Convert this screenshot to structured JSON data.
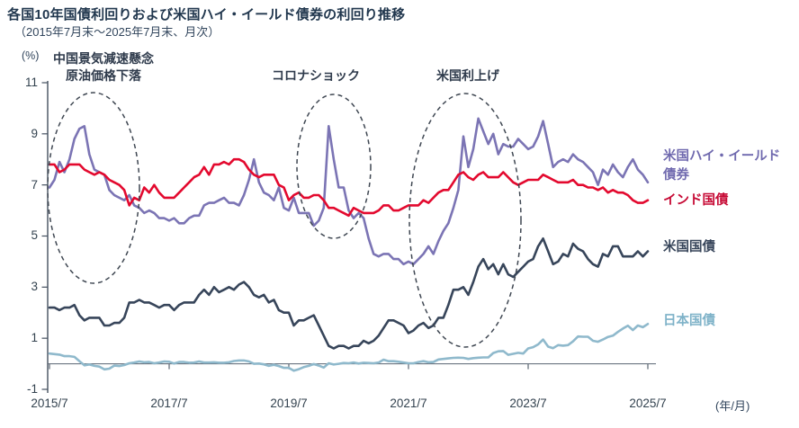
{
  "header": {
    "title": "各国10年国債利回りおよび米国ハイ・イールド債券の利回り推移",
    "subtitle": "（2015年7月末～2025年7月末、月次）"
  },
  "chart_data": {
    "type": "line",
    "title": "各国10年国債利回りおよび米国ハイ・イールド債券の利回り推移",
    "subtitle": "（2015年7月末～2025年7月末、月次）",
    "x_start": "2015/7",
    "x_end": "2025/7",
    "frequency": "monthly",
    "months": 121,
    "ylim": [
      -1,
      11
    ],
    "y_ticks": [
      -1,
      1,
      3,
      5,
      7,
      9,
      11
    ],
    "x_ticks": [
      {
        "month": 0,
        "label": "2015/7"
      },
      {
        "month": 24,
        "label": "2017/7"
      },
      {
        "month": 48,
        "label": "2019/7"
      },
      {
        "month": 72,
        "label": "2021/7"
      },
      {
        "month": 96,
        "label": "2023/7"
      },
      {
        "month": 120,
        "label": "2025/7"
      }
    ],
    "y_unit": "(%)",
    "x_unit": "(年/月)",
    "grid": false,
    "legend_position": "right",
    "annotations": [
      {
        "text": "中国景気減速懸念\n原油価格下落"
      },
      {
        "text": "コロナショック"
      },
      {
        "text": "米国利上げ"
      }
    ],
    "series": [
      {
        "name": "米国ハイ・イールド債券",
        "color": "#7B74B4",
        "label_color": "#6F69AE",
        "values": [
          6.9,
          7.2,
          7.9,
          7.5,
          8.0,
          8.8,
          9.2,
          9.3,
          8.2,
          7.6,
          7.5,
          7.4,
          6.8,
          6.6,
          6.5,
          6.4,
          6.6,
          6.2,
          6.1,
          5.9,
          6.0,
          5.9,
          5.7,
          5.7,
          5.6,
          5.7,
          5.5,
          5.5,
          5.7,
          5.8,
          5.8,
          6.2,
          6.3,
          6.3,
          6.4,
          6.5,
          6.3,
          6.3,
          6.2,
          6.6,
          7.2,
          8.0,
          7.1,
          6.7,
          6.6,
          6.4,
          6.9,
          6.1,
          6.0,
          6.5,
          5.9,
          5.9,
          5.9,
          5.4,
          5.6,
          6.1,
          9.3,
          8.0,
          6.9,
          6.9,
          6.0,
          5.7,
          5.9,
          5.7,
          4.9,
          4.3,
          4.2,
          4.3,
          4.3,
          4.1,
          4.1,
          3.9,
          4.0,
          3.9,
          4.1,
          4.3,
          4.6,
          4.3,
          4.8,
          5.2,
          5.5,
          6.1,
          6.8,
          8.9,
          7.7,
          8.4,
          9.6,
          9.1,
          8.6,
          9.0,
          8.2,
          8.6,
          8.5,
          8.5,
          8.8,
          8.6,
          8.4,
          8.5,
          8.9,
          9.5,
          8.6,
          7.7,
          7.9,
          8.0,
          7.9,
          8.2,
          8.0,
          7.9,
          7.7,
          7.5,
          7.0,
          7.6,
          7.4,
          7.8,
          7.5,
          7.3,
          7.7,
          8.0,
          7.6,
          7.4,
          7.1
        ]
      },
      {
        "name": "インド国債",
        "color": "#E3092E",
        "label_color": "#C60934",
        "values": [
          7.8,
          7.8,
          7.5,
          7.6,
          7.8,
          7.8,
          7.8,
          7.6,
          7.5,
          7.4,
          7.5,
          7.4,
          7.2,
          7.1,
          7.0,
          6.8,
          6.2,
          6.5,
          6.4,
          6.9,
          6.7,
          7.0,
          6.7,
          6.5,
          6.5,
          6.5,
          6.7,
          6.9,
          7.1,
          7.3,
          7.4,
          7.7,
          7.4,
          7.8,
          7.8,
          7.9,
          7.8,
          8.0,
          8.0,
          7.9,
          7.6,
          7.4,
          7.3,
          7.4,
          7.4,
          7.4,
          7.0,
          6.9,
          6.4,
          6.6,
          6.7,
          6.5,
          6.5,
          6.6,
          6.6,
          6.4,
          6.1,
          6.1,
          6.0,
          5.9,
          5.8,
          6.1,
          6.0,
          5.9,
          5.9,
          5.9,
          6.0,
          6.2,
          6.2,
          6.0,
          6.0,
          6.1,
          6.2,
          6.2,
          6.2,
          6.4,
          6.3,
          6.5,
          6.7,
          6.8,
          6.8,
          7.1,
          7.4,
          7.5,
          7.3,
          7.2,
          7.4,
          7.5,
          7.3,
          7.3,
          7.3,
          7.5,
          7.3,
          7.1,
          7.0,
          7.1,
          7.2,
          7.2,
          7.2,
          7.4,
          7.3,
          7.2,
          7.1,
          7.1,
          7.1,
          7.2,
          7.0,
          7.0,
          6.9,
          6.9,
          6.8,
          6.9,
          6.7,
          6.8,
          6.7,
          6.7,
          6.6,
          6.4,
          6.3,
          6.3,
          6.4
        ]
      },
      {
        "name": "米国国債",
        "color": "#37455A",
        "label_color": "#37455A",
        "values": [
          2.2,
          2.2,
          2.1,
          2.2,
          2.2,
          2.3,
          1.9,
          1.7,
          1.8,
          1.8,
          1.8,
          1.5,
          1.5,
          1.6,
          1.6,
          1.8,
          2.4,
          2.4,
          2.5,
          2.4,
          2.4,
          2.3,
          2.2,
          2.3,
          2.3,
          2.1,
          2.3,
          2.4,
          2.4,
          2.4,
          2.7,
          2.9,
          2.7,
          3.0,
          2.8,
          2.9,
          3.0,
          2.9,
          3.1,
          3.2,
          3.0,
          2.7,
          2.6,
          2.7,
          2.4,
          2.5,
          2.1,
          2.0,
          2.0,
          1.5,
          1.7,
          1.7,
          1.8,
          1.9,
          1.5,
          1.1,
          0.7,
          0.6,
          0.7,
          0.7,
          0.6,
          0.7,
          0.7,
          0.9,
          0.8,
          0.9,
          1.1,
          1.4,
          1.7,
          1.7,
          1.6,
          1.5,
          1.2,
          1.3,
          1.5,
          1.6,
          1.4,
          1.5,
          1.8,
          1.8,
          2.3,
          2.9,
          2.9,
          3.0,
          2.7,
          3.2,
          3.8,
          4.1,
          3.7,
          3.9,
          3.5,
          3.9,
          3.5,
          3.4,
          3.6,
          3.8,
          4.0,
          4.1,
          4.6,
          4.9,
          4.4,
          3.9,
          4.0,
          4.3,
          4.2,
          4.7,
          4.5,
          4.4,
          4.1,
          3.9,
          3.8,
          4.3,
          4.2,
          4.6,
          4.6,
          4.2,
          4.2,
          4.2,
          4.4,
          4.2,
          4.4
        ]
      },
      {
        "name": "日本国債",
        "color": "#8FB9CC",
        "label_color": "#7EB2C8",
        "values": [
          0.4,
          0.38,
          0.36,
          0.3,
          0.3,
          0.27,
          0.1,
          -0.06,
          -0.03,
          -0.08,
          -0.11,
          -0.22,
          -0.19,
          -0.07,
          -0.09,
          -0.05,
          0.02,
          0.05,
          0.09,
          0.06,
          0.07,
          0.02,
          0.05,
          0.09,
          0.08,
          0.01,
          0.07,
          0.07,
          0.04,
          0.05,
          0.09,
          0.05,
          0.05,
          0.06,
          0.04,
          0.04,
          0.06,
          0.11,
          0.13,
          0.13,
          0.09,
          0.0,
          0.01,
          -0.02,
          -0.08,
          -0.04,
          -0.09,
          -0.16,
          -0.16,
          -0.27,
          -0.21,
          -0.13,
          -0.08,
          -0.01,
          -0.07,
          -0.15,
          0.02,
          -0.03,
          0.0,
          0.03,
          0.02,
          0.05,
          0.01,
          0.04,
          0.03,
          0.02,
          0.05,
          0.16,
          0.1,
          0.1,
          0.08,
          0.05,
          0.02,
          0.02,
          0.07,
          0.1,
          0.06,
          0.07,
          0.17,
          0.19,
          0.21,
          0.23,
          0.24,
          0.23,
          0.19,
          0.22,
          0.24,
          0.25,
          0.25,
          0.42,
          0.49,
          0.5,
          0.35,
          0.39,
          0.43,
          0.4,
          0.6,
          0.65,
          0.76,
          0.95,
          0.67,
          0.61,
          0.73,
          0.71,
          0.73,
          0.88,
          1.07,
          1.06,
          1.06,
          0.9,
          0.86,
          0.95,
          1.05,
          1.1,
          1.25,
          1.38,
          1.49,
          1.32,
          1.5,
          1.43,
          1.56
        ]
      }
    ]
  }
}
